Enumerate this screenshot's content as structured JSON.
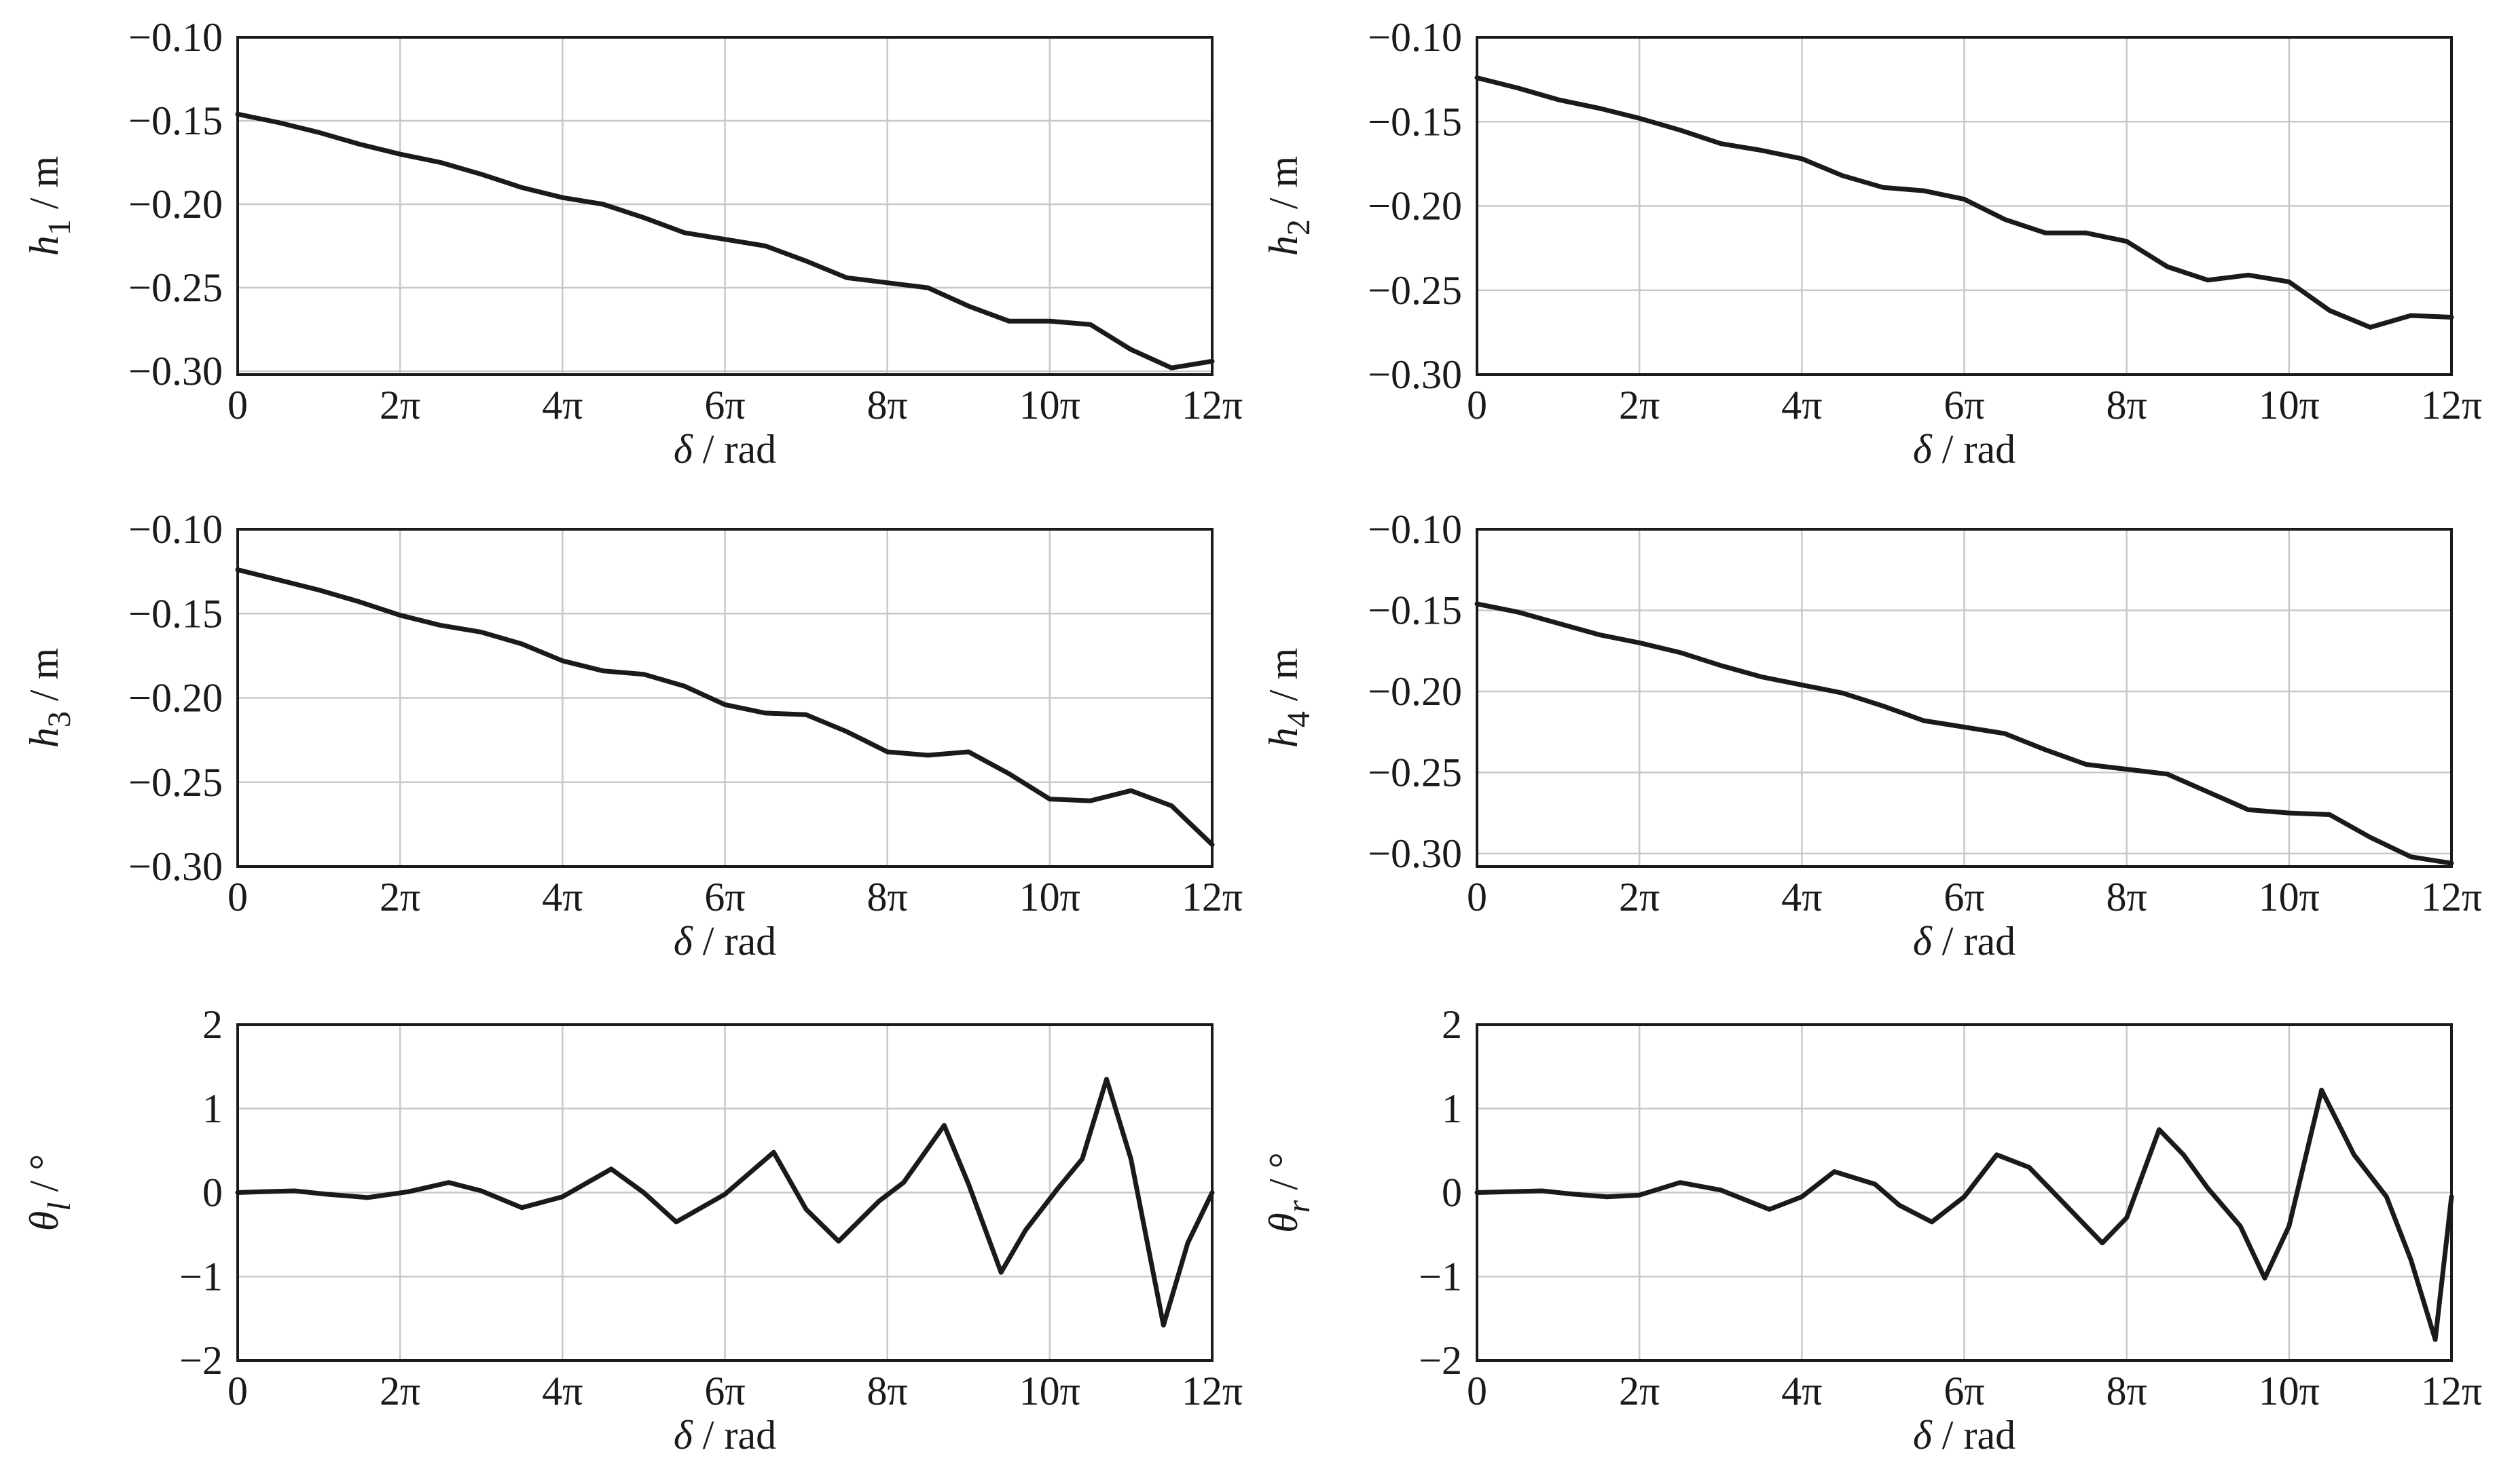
{
  "chart_data": [
    {
      "type": "line",
      "title": "",
      "ylabel": {
        "symbol": "h",
        "sub": "1",
        "unit": "/ m"
      },
      "xlabel": {
        "symbol": "δ",
        "unit": "/ rad"
      },
      "xlim": [
        0,
        12
      ],
      "ylim": [
        -0.302,
        -0.1
      ],
      "x_unit": "π",
      "xticks": [
        0,
        2,
        4,
        6,
        8,
        10,
        12
      ],
      "xtick_labels": [
        "0",
        "2π",
        "4π",
        "6π",
        "8π",
        "10π",
        "12π"
      ],
      "yticks": [
        -0.1,
        -0.15,
        -0.2,
        -0.25,
        -0.3
      ],
      "ytick_labels": [
        "−0.10",
        "−0.15",
        "−0.20",
        "−0.25",
        "−0.30"
      ],
      "grid": true,
      "series": [
        {
          "name": "h1",
          "x": [
            0,
            0.5,
            1,
            1.5,
            2,
            2.5,
            3,
            3.5,
            4,
            4.5,
            5,
            5.5,
            6,
            6.5,
            7,
            7.5,
            8,
            8.5,
            9,
            9.5,
            10,
            10.5,
            11,
            11.5,
            12
          ],
          "y": [
            -0.146,
            -0.151,
            -0.157,
            -0.164,
            -0.17,
            -0.175,
            -0.182,
            -0.19,
            -0.196,
            -0.2,
            -0.208,
            -0.217,
            -0.221,
            -0.225,
            -0.234,
            -0.244,
            -0.247,
            -0.25,
            -0.261,
            -0.27,
            -0.27,
            -0.272,
            -0.287,
            -0.298,
            -0.294
          ]
        }
      ]
    },
    {
      "type": "line",
      "title": "",
      "ylabel": {
        "symbol": "h",
        "sub": "2",
        "unit": "/ m"
      },
      "xlabel": {
        "symbol": "δ",
        "unit": "/ rad"
      },
      "xlim": [
        0,
        12
      ],
      "ylim": [
        -0.3,
        -0.1
      ],
      "x_unit": "π",
      "xticks": [
        0,
        2,
        4,
        6,
        8,
        10,
        12
      ],
      "xtick_labels": [
        "0",
        "2π",
        "4π",
        "6π",
        "8π",
        "10π",
        "12π"
      ],
      "yticks": [
        -0.1,
        -0.15,
        -0.2,
        -0.25,
        -0.3
      ],
      "ytick_labels": [
        "−0.10",
        "−0.15",
        "−0.20",
        "−0.25",
        "−0.30"
      ],
      "grid": true,
      "series": [
        {
          "name": "h2",
          "x": [
            0,
            0.5,
            1,
            1.5,
            2,
            2.5,
            3,
            3.5,
            4,
            4.5,
            5,
            5.5,
            6,
            6.5,
            7,
            7.5,
            8,
            8.5,
            9,
            9.5,
            10,
            10.5,
            11,
            11.5,
            12
          ],
          "y": [
            -0.124,
            -0.13,
            -0.137,
            -0.142,
            -0.148,
            -0.155,
            -0.163,
            -0.167,
            -0.172,
            -0.182,
            -0.189,
            -0.191,
            -0.196,
            -0.208,
            -0.216,
            -0.216,
            -0.221,
            -0.236,
            -0.244,
            -0.241,
            -0.245,
            -0.262,
            -0.272,
            -0.265,
            -0.266
          ]
        }
      ]
    },
    {
      "type": "line",
      "title": "",
      "ylabel": {
        "symbol": "h",
        "sub": "3",
        "unit": "/ m"
      },
      "xlabel": {
        "symbol": "δ",
        "unit": "/ rad"
      },
      "xlim": [
        0,
        12
      ],
      "ylim": [
        -0.3,
        -0.1
      ],
      "x_unit": "π",
      "xticks": [
        0,
        2,
        4,
        6,
        8,
        10,
        12
      ],
      "xtick_labels": [
        "0",
        "2π",
        "4π",
        "6π",
        "8π",
        "10π",
        "12π"
      ],
      "yticks": [
        -0.1,
        -0.15,
        -0.2,
        -0.25,
        -0.3
      ],
      "ytick_labels": [
        "−0.10",
        "−0.15",
        "−0.20",
        "−0.25",
        "−0.30"
      ],
      "grid": true,
      "series": [
        {
          "name": "h3",
          "x": [
            0,
            0.5,
            1,
            1.5,
            2,
            2.5,
            3,
            3.5,
            4,
            4.5,
            5,
            5.5,
            6,
            6.5,
            7,
            7.5,
            8,
            8.5,
            9,
            9.5,
            10,
            10.5,
            11,
            11.5,
            12
          ],
          "y": [
            -0.124,
            -0.13,
            -0.136,
            -0.143,
            -0.151,
            -0.157,
            -0.161,
            -0.168,
            -0.178,
            -0.184,
            -0.186,
            -0.193,
            -0.204,
            -0.209,
            -0.21,
            -0.22,
            -0.232,
            -0.234,
            -0.232,
            -0.245,
            -0.26,
            -0.261,
            -0.255,
            -0.264,
            -0.287
          ]
        }
      ]
    },
    {
      "type": "line",
      "title": "",
      "ylabel": {
        "symbol": "h",
        "sub": "4",
        "unit": "/ m"
      },
      "xlabel": {
        "symbol": "δ",
        "unit": "/ rad"
      },
      "xlim": [
        0,
        12
      ],
      "ylim": [
        -0.308,
        -0.1
      ],
      "x_unit": "π",
      "xticks": [
        0,
        2,
        4,
        6,
        8,
        10,
        12
      ],
      "xtick_labels": [
        "0",
        "2π",
        "4π",
        "6π",
        "8π",
        "10π",
        "12π"
      ],
      "yticks": [
        -0.1,
        -0.15,
        -0.2,
        -0.25,
        -0.3
      ],
      "ytick_labels": [
        "−0.10",
        "−0.15",
        "−0.20",
        "−0.25",
        "−0.30"
      ],
      "grid": true,
      "series": [
        {
          "name": "h4",
          "x": [
            0,
            0.5,
            1,
            1.5,
            2,
            2.5,
            3,
            3.5,
            4,
            4.5,
            5,
            5.5,
            6,
            6.5,
            7,
            7.5,
            8,
            8.5,
            9,
            9.5,
            10,
            10.5,
            11,
            11.5,
            12
          ],
          "y": [
            -0.146,
            -0.151,
            -0.158,
            -0.165,
            -0.17,
            -0.176,
            -0.184,
            -0.191,
            -0.196,
            -0.201,
            -0.209,
            -0.218,
            -0.222,
            -0.226,
            -0.236,
            -0.245,
            -0.248,
            -0.251,
            -0.262,
            -0.273,
            -0.275,
            -0.276,
            -0.29,
            -0.302,
            -0.306
          ]
        }
      ]
    },
    {
      "type": "line",
      "title": "",
      "ylabel": {
        "symbol": "θ",
        "sub": "l",
        "unit": "/ °"
      },
      "xlabel": {
        "symbol": "δ",
        "unit": "/ rad"
      },
      "xlim": [
        0,
        12
      ],
      "ylim": [
        -2,
        2
      ],
      "x_unit": "π",
      "xticks": [
        0,
        2,
        4,
        6,
        8,
        10,
        12
      ],
      "xtick_labels": [
        "0",
        "2π",
        "4π",
        "6π",
        "8π",
        "10π",
        "12π"
      ],
      "yticks": [
        2,
        1,
        0,
        -1,
        -2
      ],
      "ytick_labels": [
        "2",
        "1",
        "0",
        "−1",
        "−2"
      ],
      "grid": true,
      "series": [
        {
          "name": "theta_l",
          "x": [
            0,
            0.3,
            0.7,
            1.1,
            1.6,
            2.1,
            2.6,
            3.0,
            3.5,
            4.0,
            4.6,
            5.0,
            5.4,
            6.0,
            6.6,
            7.0,
            7.4,
            7.9,
            8.2,
            8.7,
            9.0,
            9.4,
            9.7,
            10.1,
            10.4,
            10.7,
            11.0,
            11.4,
            11.7,
            12.0
          ],
          "y": [
            0,
            0.01,
            0.02,
            -0.02,
            -0.06,
            0.01,
            0.12,
            0.02,
            -0.18,
            -0.05,
            0.28,
            0.0,
            -0.35,
            -0.02,
            0.48,
            -0.2,
            -0.58,
            -0.1,
            0.12,
            0.8,
            0.1,
            -0.95,
            -0.45,
            0.05,
            0.4,
            1.35,
            0.4,
            -1.58,
            -0.6,
            0.0
          ]
        }
      ]
    },
    {
      "type": "line",
      "title": "",
      "ylabel": {
        "symbol": "θ",
        "sub": "r",
        "unit": "/ °"
      },
      "xlabel": {
        "symbol": "δ",
        "unit": "/ rad"
      },
      "xlim": [
        0,
        12
      ],
      "ylim": [
        -2,
        2
      ],
      "x_unit": "π",
      "xticks": [
        0,
        2,
        4,
        6,
        8,
        10,
        12
      ],
      "xtick_labels": [
        "0",
        "2π",
        "4π",
        "6π",
        "8π",
        "10π",
        "12π"
      ],
      "yticks": [
        2,
        1,
        0,
        -1,
        -2
      ],
      "ytick_labels": [
        "2",
        "1",
        "0",
        "−1",
        "−2"
      ],
      "grid": true,
      "series": [
        {
          "name": "theta_r",
          "x": [
            0,
            0.4,
            0.8,
            1.2,
            1.6,
            2.0,
            2.5,
            3.0,
            3.6,
            4.0,
            4.4,
            4.9,
            5.2,
            5.6,
            6.0,
            6.4,
            6.8,
            7.3,
            7.7,
            8.0,
            8.4,
            8.7,
            9.0,
            9.4,
            9.7,
            10.0,
            10.4,
            10.8,
            11.2,
            11.5,
            11.8,
            12.0
          ],
          "y": [
            0,
            0.01,
            0.02,
            -0.02,
            -0.05,
            -0.03,
            0.12,
            0.03,
            -0.2,
            -0.05,
            0.25,
            0.1,
            -0.15,
            -0.35,
            -0.05,
            0.45,
            0.3,
            -0.2,
            -0.6,
            -0.3,
            0.75,
            0.45,
            0.05,
            -0.4,
            -1.02,
            -0.4,
            1.22,
            0.45,
            -0.05,
            -0.8,
            -1.75,
            -0.05
          ]
        }
      ]
    }
  ]
}
